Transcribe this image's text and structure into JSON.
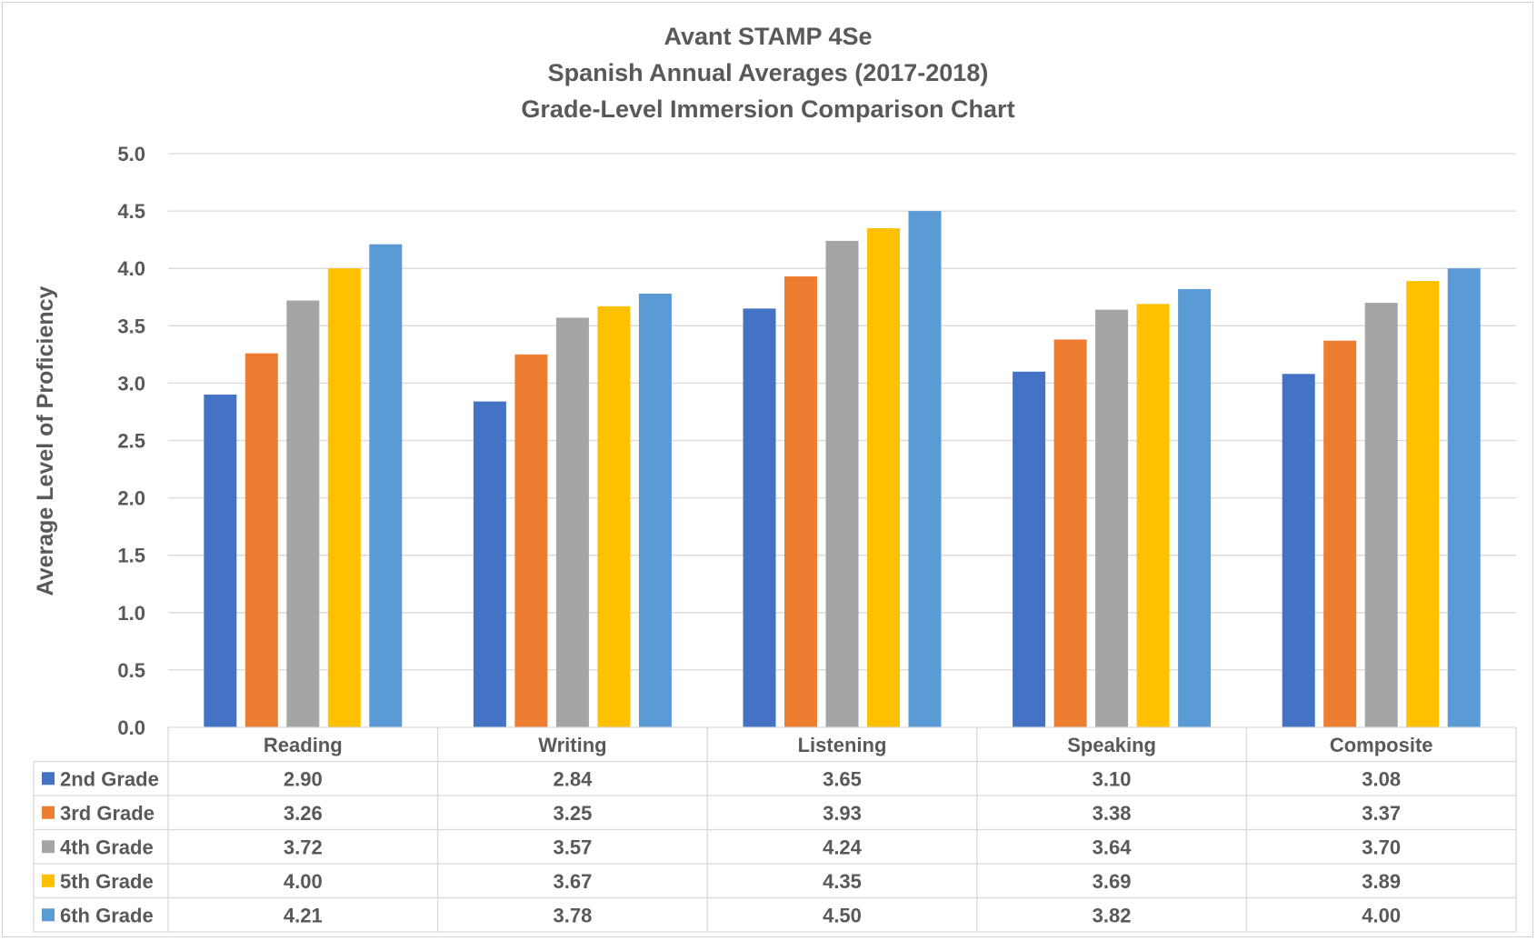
{
  "chart_data": {
    "type": "bar",
    "title_lines": [
      "Avant STAMP 4Se",
      "Spanish Annual Averages (2017-2018)",
      "Grade-Level Immersion Comparison Chart"
    ],
    "xlabel": "",
    "ylabel": "Average Level of Proficiency",
    "ylim": [
      0,
      5
    ],
    "y_ticks": [
      "0.0",
      "0.5",
      "1.0",
      "1.5",
      "2.0",
      "2.5",
      "3.0",
      "3.5",
      "4.0",
      "4.5",
      "5.0"
    ],
    "grid": true,
    "legend": "data-table",
    "categories": [
      "Reading",
      "Writing",
      "Listening",
      "Speaking",
      "Composite"
    ],
    "series": [
      {
        "name": "2nd Grade",
        "color": "#4472C4",
        "values": [
          2.9,
          2.84,
          3.65,
          3.1,
          3.08
        ],
        "labels": [
          "2.90",
          "2.84",
          "3.65",
          "3.10",
          "3.08"
        ]
      },
      {
        "name": "3rd Grade",
        "color": "#ED7D31",
        "values": [
          3.26,
          3.25,
          3.93,
          3.38,
          3.37
        ],
        "labels": [
          "3.26",
          "3.25",
          "3.93",
          "3.38",
          "3.37"
        ]
      },
      {
        "name": "4th Grade",
        "color": "#A5A5A5",
        "values": [
          3.72,
          3.57,
          4.24,
          3.64,
          3.7
        ],
        "labels": [
          "3.72",
          "3.57",
          "4.24",
          "3.64",
          "3.70"
        ]
      },
      {
        "name": "5th Grade",
        "color": "#FFC000",
        "values": [
          4.0,
          3.67,
          4.35,
          3.69,
          3.89
        ],
        "labels": [
          "4.00",
          "3.67",
          "4.35",
          "3.69",
          "3.89"
        ]
      },
      {
        "name": "6th Grade",
        "color": "#5B9BD5",
        "values": [
          4.21,
          3.78,
          4.5,
          3.82,
          4.0
        ],
        "labels": [
          "4.21",
          "3.78",
          "4.50",
          "3.82",
          "4.00"
        ]
      }
    ]
  }
}
